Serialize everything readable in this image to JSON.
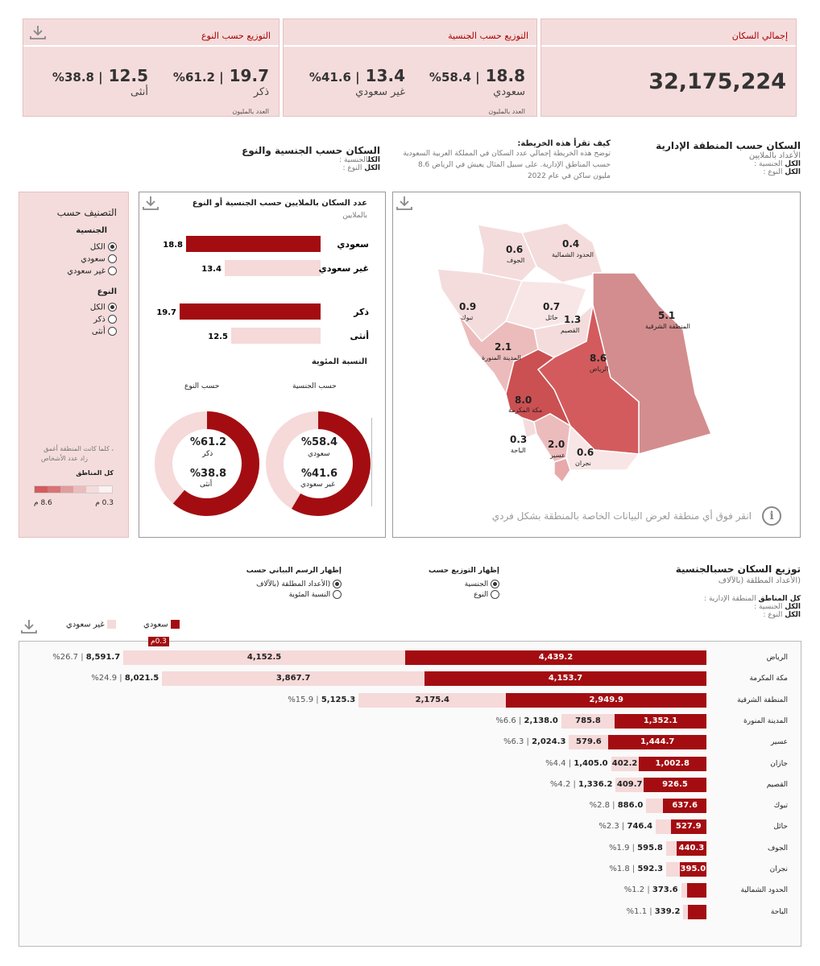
{
  "kpi": {
    "total": {
      "label": "إجمالي السكان",
      "value": "32,175,224"
    },
    "nationality": {
      "label": "التوزيع حسب الجنسية",
      "saudi_value": "18.8",
      "saudi_pct": "%58.4 |",
      "saudi_label": "سعودي",
      "non_value": "13.4",
      "non_pct": "%41.6 |",
      "non_label": "غير سعودي",
      "note": "العدد بالمليون"
    },
    "gender": {
      "label": "التوزيع حسب النوع",
      "male_value": "19.7",
      "male_pct": "%61.2 |",
      "male_label": "ذكر",
      "female_value": "12.5",
      "female_pct": "%38.8 |",
      "female_label": "أنثى",
      "note": "العدد بالمليون"
    }
  },
  "map_section": {
    "title": "السكان حسب المنطقة الإدارية",
    "subtitle": "الأعداد بالملايين",
    "filter1_key": "الكل",
    "filter1_name": "الجنسية :",
    "filter2_key": "الكل",
    "filter2_name": "النوع :",
    "howto_title": "كيف تقرأ هذه الخريطة:",
    "howto_text": "توضح هذه الخريطة إجمالي عدد السكان في المملكة العربية السعودية حسب المناطق الإدارية. على سبيل المثال يعيش في الرياض 8.6 مليون ساكن في عام 2022",
    "hint": "انقر فوق أي منطقة لعرض البيانات الخاصة بالمنطقة بشكل فردي",
    "regions": [
      {
        "num": "0.4",
        "name": "الحدود الشمالية"
      },
      {
        "num": "0.6",
        "name": "الجوف"
      },
      {
        "num": "0.9",
        "name": "تبوك"
      },
      {
        "num": "0.7",
        "name": "حائل"
      },
      {
        "num": "1.3",
        "name": "القصيم"
      },
      {
        "num": "5.1",
        "name": "المنطقة الشرقية"
      },
      {
        "num": "2.1",
        "name": "المدينة المنورة"
      },
      {
        "num": "8.6",
        "name": "الرياض"
      },
      {
        "num": "8.0",
        "name": "مكة المكرمة"
      },
      {
        "num": "0.3",
        "name": "الباحة"
      },
      {
        "num": "2.0",
        "name": "عسير"
      },
      {
        "num": "0.6",
        "name": "نجران"
      }
    ]
  },
  "nat_gender_section": {
    "title": "السكان حسب الجنسية والنوع",
    "filter1_key": "الكل",
    "filter1_name": "الجنسية :",
    "filter2_key": "الكل",
    "filter2_name": "النوع :",
    "chart_title": "عدد السكان بالملايين حسب الجنسية أو النوع",
    "chart_sub": "بالملايين",
    "pct_title": "النسبة المئوية",
    "donut_nat_title": "حسب الجنسية",
    "donut_gender_title": "حسب النوع",
    "donut_nat_a": "%58.4",
    "donut_nat_a_lbl": "سعودي",
    "donut_nat_b": "%41.6",
    "donut_nat_b_lbl": "غير سعودي",
    "donut_gen_a": "%61.2",
    "donut_gen_a_lbl": "ذكر",
    "donut_gen_b": "%38.8",
    "donut_gen_b_lbl": "أنثى"
  },
  "classify": {
    "title": "التصنيف حسب",
    "nat_heading": "الجنسية",
    "nat_options": [
      "الكل",
      "سعودي",
      "غير سعودي"
    ],
    "gender_heading": "النوع",
    "gender_options": [
      "الكل",
      "ذكر",
      "أنثى"
    ],
    "legend_note1": "، كلما كانت المنطقة أغمق",
    "legend_note2": "زاد عدد الأشخاص",
    "legend_title": "كل المناطق",
    "legend_min": "0.3 م",
    "legend_max": "8.6 م"
  },
  "dist_section": {
    "title_a": "توزيع السكان حسب",
    "title_b": "الجنسية",
    "subtitle": "(الأعداد المطلقة (بالآلاف",
    "f_all": "كل المناطق",
    "f_all_name": "المنطقة الإدارية :",
    "f1_key": "الكل",
    "f1_name": "الجنسية :",
    "f2_key": "الكل",
    "f2_name": "النوع :",
    "dist_by_title": "إظهار التوزيع حسب",
    "dist_by_options": [
      "الجنسية",
      "النوع"
    ],
    "show_chart_title": "إظهار الرسم البياني حسب",
    "show_chart_options": [
      "(الأعداد المطلقة (بالآلاف",
      "النسبة المئوية"
    ],
    "legend_saudi": "سعودي",
    "legend_non": "غير سعودي",
    "tooltip": "0.3م"
  },
  "colors": {
    "accent": "#a30d11",
    "light": "#f6d9d9",
    "card": "#f5dcdc"
  },
  "chart_data": {
    "type": "bar",
    "title": "عدد السكان بالملايين حسب الجنسية أو النوع",
    "categories": [
      "سعودي",
      "غير سعودي",
      "ذكر",
      "أنثى"
    ],
    "values": [
      18.8,
      13.4,
      19.7,
      12.5
    ]
  },
  "rows": [
    {
      "name": "الرياض",
      "saudi": 4439.2,
      "non": 4152.5,
      "saudi_txt": "4,439.2",
      "non_txt": "4,152.5",
      "total": "8,591.7",
      "pct": "%26.7"
    },
    {
      "name": "مكة المكرمة",
      "saudi": 4153.7,
      "non": 3867.7,
      "saudi_txt": "4,153.7",
      "non_txt": "3,867.7",
      "total": "8,021.5",
      "pct": "%24.9"
    },
    {
      "name": "المنطقة الشرقية",
      "saudi": 2949.9,
      "non": 2175.4,
      "saudi_txt": "2,949.9",
      "non_txt": "2,175.4",
      "total": "5,125.3",
      "pct": "%15.9"
    },
    {
      "name": "المدينة المنورة",
      "saudi": 1352.1,
      "non": 785.8,
      "saudi_txt": "1,352.1",
      "non_txt": "785.8",
      "total": "2,138.0",
      "pct": "%6.6"
    },
    {
      "name": "عسير",
      "saudi": 1444.7,
      "non": 579.6,
      "saudi_txt": "1,444.7",
      "non_txt": "579.6",
      "total": "2,024.3",
      "pct": "%6.3"
    },
    {
      "name": "جازان",
      "saudi": 1002.8,
      "non": 402.2,
      "saudi_txt": "1,002.8",
      "non_txt": "402.2",
      "total": "1,405.0",
      "pct": "%4.4"
    },
    {
      "name": "القصيم",
      "saudi": 926.5,
      "non": 409.7,
      "saudi_txt": "926.5",
      "non_txt": "409.7",
      "total": "1,336.2",
      "pct": "%4.2"
    },
    {
      "name": "تبوك",
      "saudi": 637.6,
      "non": 248.4,
      "saudi_txt": "637.6",
      "non_txt": "",
      "total": "886.0",
      "pct": "%2.8"
    },
    {
      "name": "حائل",
      "saudi": 527.9,
      "non": 218.5,
      "saudi_txt": "527.9",
      "non_txt": "",
      "total": "746.4",
      "pct": "%2.3"
    },
    {
      "name": "الجوف",
      "saudi": 440.3,
      "non": 155.5,
      "saudi_txt": "440.3",
      "non_txt": "",
      "total": "595.8",
      "pct": "%1.9"
    },
    {
      "name": "نجران",
      "saudi": 395.0,
      "non": 197.3,
      "saudi_txt": "395.0",
      "non_txt": "",
      "total": "592.3",
      "pct": "%1.8"
    },
    {
      "name": "الحدود الشمالية",
      "saudi": 280.0,
      "non": 93.6,
      "saudi_txt": "",
      "non_txt": "",
      "total": "373.6",
      "pct": "%1.2"
    },
    {
      "name": "الباحة",
      "saudi": 270.0,
      "non": 69.2,
      "saudi_txt": "",
      "non_txt": "",
      "total": "339.2",
      "pct": "%1.1"
    }
  ]
}
